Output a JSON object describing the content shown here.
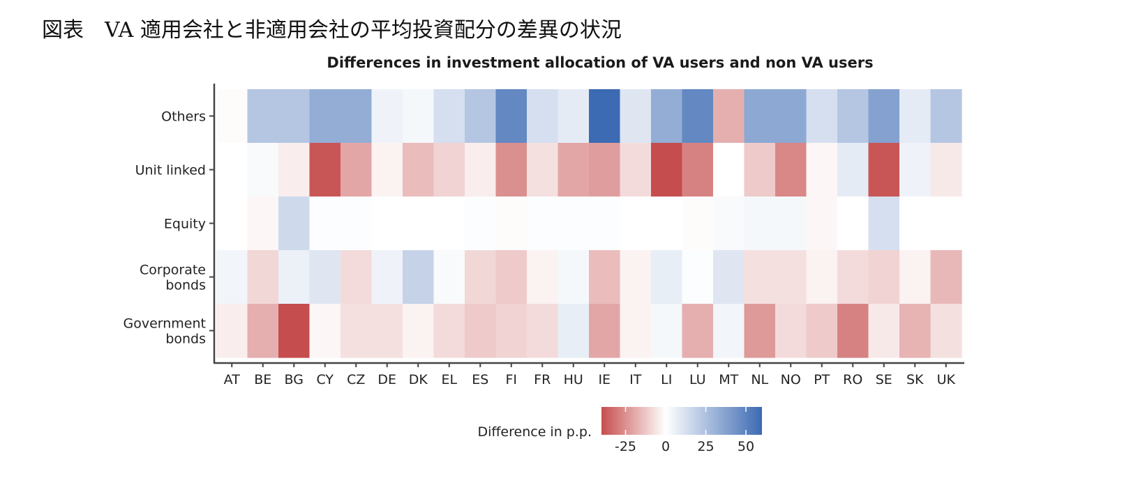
{
  "caption": "図表　VA 適用会社と非適用会社の平均投資配分の差異の状況",
  "chart_data": {
    "type": "heatmap",
    "title": "Differences in investment allocation of VA users and non VA users",
    "x_categories": [
      "AT",
      "BE",
      "BG",
      "CY",
      "CZ",
      "DE",
      "DK",
      "EL",
      "ES",
      "FI",
      "FR",
      "HU",
      "IE",
      "IT",
      "LI",
      "LU",
      "MT",
      "NL",
      "NO",
      "PT",
      "RO",
      "SE",
      "SK",
      "UK"
    ],
    "y_categories": [
      "Others",
      "Unit linked",
      "Equity",
      "Corporate bonds",
      "Government bonds"
    ],
    "y_tick_lines": [
      [
        "Others"
      ],
      [
        "Unit linked"
      ],
      [
        "Equity"
      ],
      [
        "Corporate",
        "bonds"
      ],
      [
        "Government",
        "bonds"
      ]
    ],
    "values": [
      [
        -1,
        23,
        23,
        33,
        33,
        5,
        3,
        13,
        23,
        48,
        13,
        8,
        60,
        10,
        33,
        48,
        -18,
        35,
        35,
        13,
        23,
        38,
        8,
        23
      ],
      [
        0,
        2,
        -4,
        -38,
        -20,
        -3,
        -15,
        -10,
        -4,
        -25,
        -7,
        -20,
        -22,
        -8,
        -40,
        -28,
        0,
        -12,
        -27,
        -2,
        8,
        -38,
        5,
        -5
      ],
      [
        0,
        -2,
        15,
        1,
        1,
        0,
        0,
        0,
        1,
        -1,
        1,
        1,
        1,
        0,
        0,
        -1,
        2,
        3,
        3,
        -2,
        0,
        13,
        0,
        0
      ],
      [
        4,
        -9,
        6,
        10,
        -8,
        5,
        18,
        2,
        -9,
        -12,
        -3,
        3,
        -15,
        -3,
        7,
        1,
        10,
        -7,
        -7,
        -3,
        -8,
        -10,
        -3,
        -16
      ],
      [
        -4,
        -18,
        -40,
        -2,
        -7,
        -7,
        -3,
        -8,
        -12,
        -10,
        -8,
        7,
        -20,
        -3,
        3,
        -18,
        4,
        -23,
        -8,
        -12,
        -28,
        -5,
        -17,
        -7
      ]
    ],
    "colorbar": {
      "label": "Difference in p.p.",
      "ticks": [
        -25,
        0,
        25,
        50
      ],
      "range": [
        -40,
        60
      ],
      "low_color": "#c64d4d",
      "mid_color": "#ffffff",
      "high_color": "#3c6ab3"
    },
    "grid": false
  }
}
